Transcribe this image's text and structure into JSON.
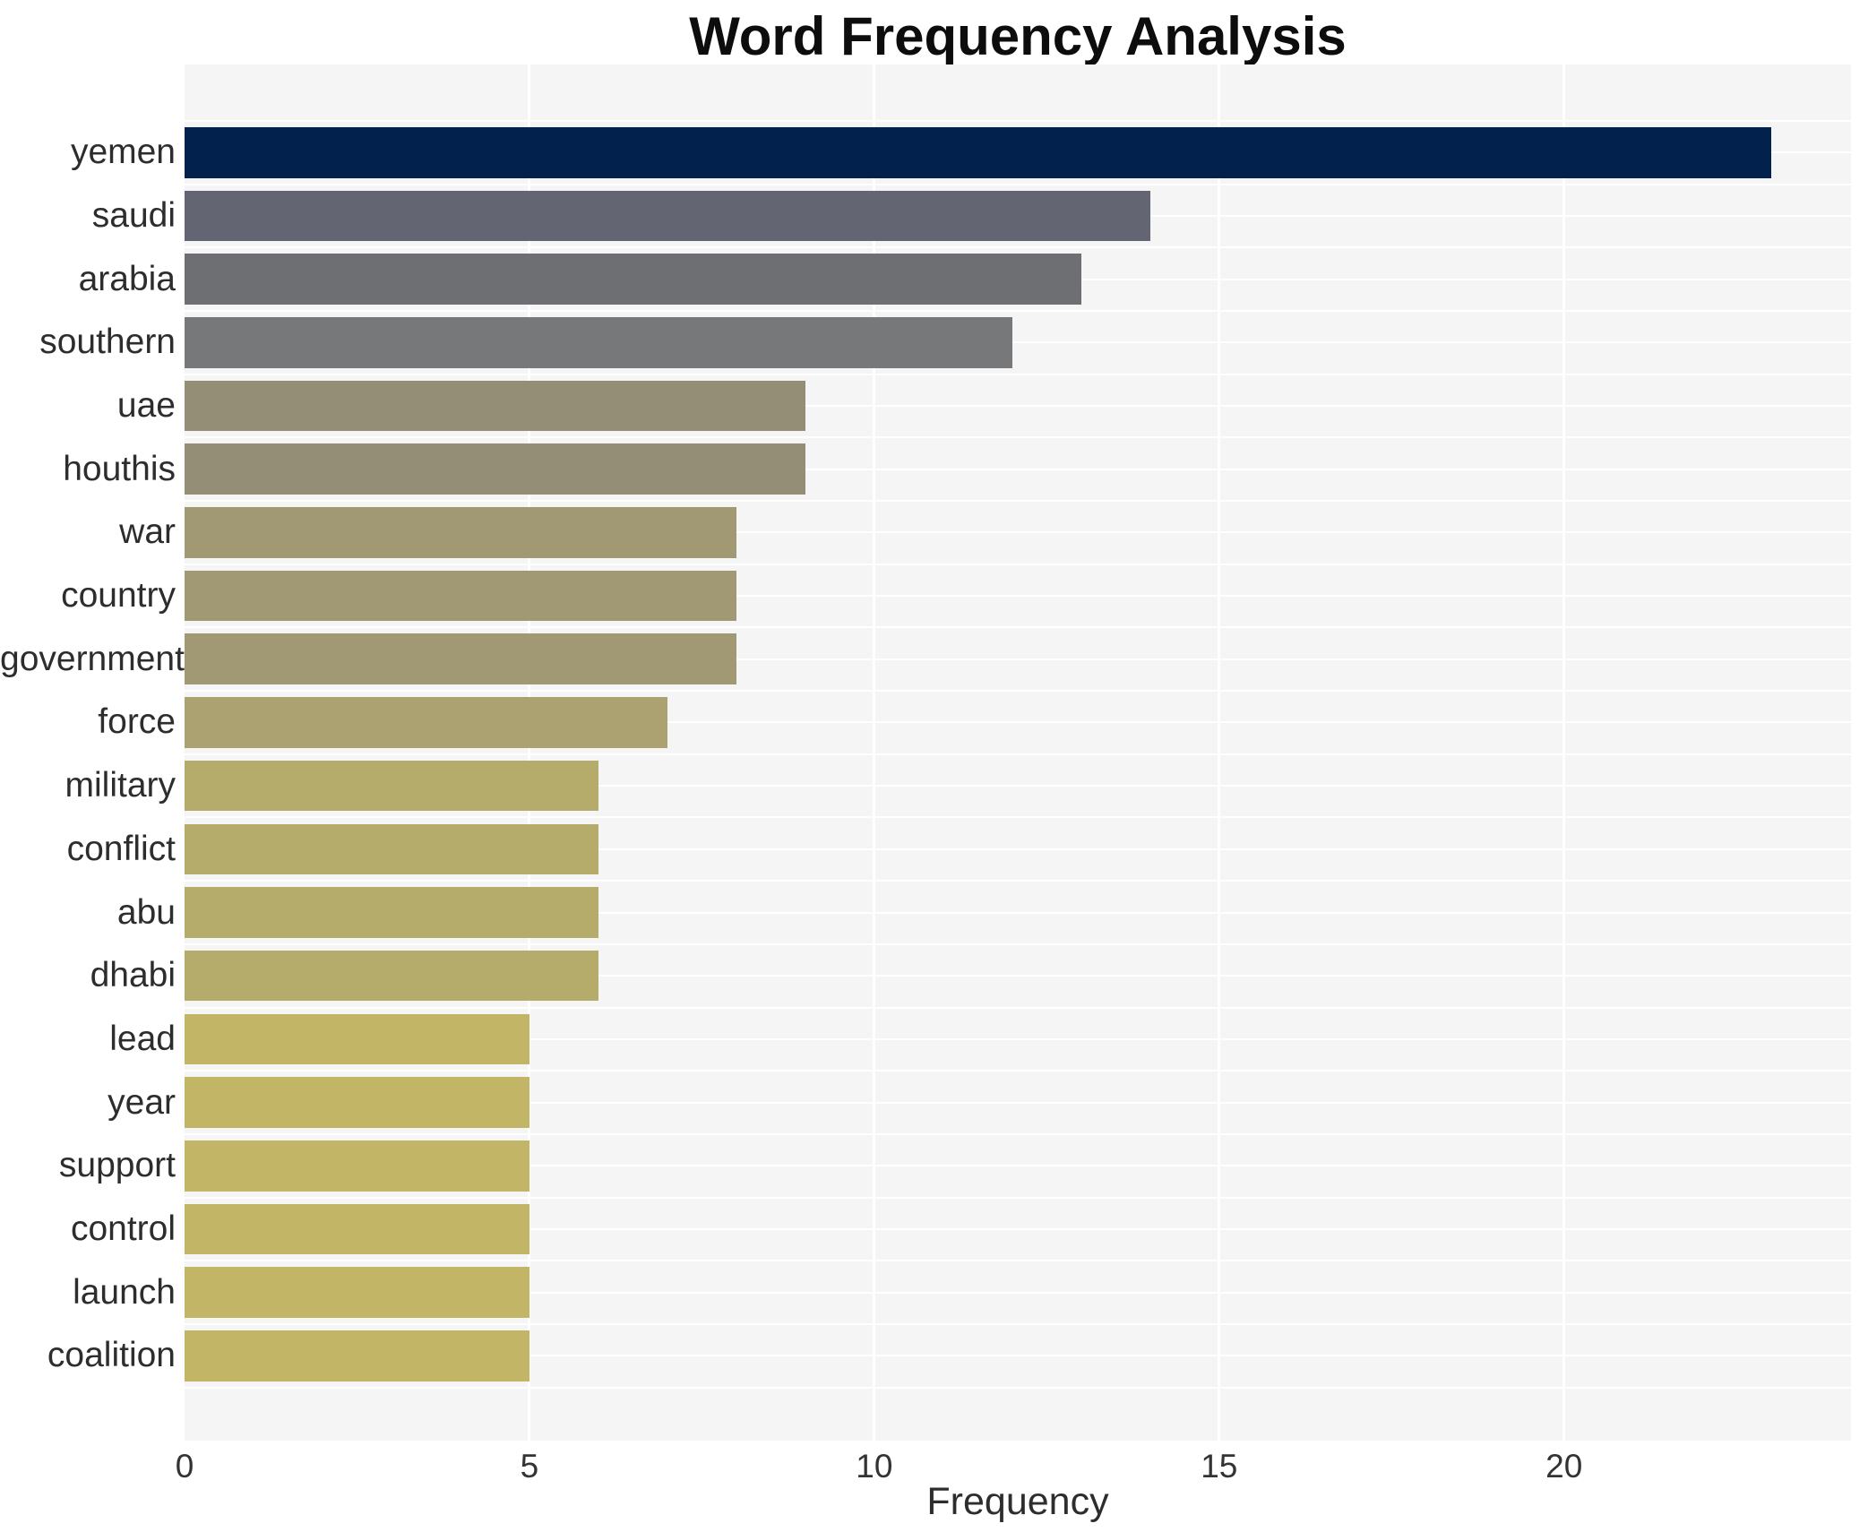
{
  "title": "Word Frequency Analysis",
  "chart_data": {
    "type": "bar",
    "orientation": "horizontal",
    "title": "Word Frequency Analysis",
    "xlabel": "Frequency",
    "ylabel": "",
    "categories": [
      "yemen",
      "saudi",
      "arabia",
      "southern",
      "uae",
      "houthis",
      "war",
      "country",
      "government",
      "force",
      "military",
      "conflict",
      "abu",
      "dhabi",
      "lead",
      "year",
      "support",
      "control",
      "launch",
      "coalition"
    ],
    "values": [
      23,
      14,
      13,
      12,
      9,
      9,
      8,
      8,
      8,
      7,
      6,
      6,
      6,
      6,
      5,
      5,
      5,
      5,
      5,
      5
    ],
    "bar_colors": [
      "#02224d",
      "#636672",
      "#6d6f73",
      "#777879",
      "#948e76",
      "#948e76",
      "#a19974",
      "#a19974",
      "#a19974",
      "#aba171",
      "#b5ab6b",
      "#b5ab6b",
      "#b5ab6b",
      "#b5ab6b",
      "#c3b566",
      "#c3b566",
      "#c3b566",
      "#c3b566",
      "#c3b566",
      "#c3b566"
    ],
    "xlim": [
      0,
      24.16
    ],
    "x_ticks": [
      0,
      5,
      10,
      15,
      20
    ],
    "grid": "on",
    "legend": "none",
    "panel_bg": "#f5f5f6",
    "grid_color": "#ffffff"
  }
}
